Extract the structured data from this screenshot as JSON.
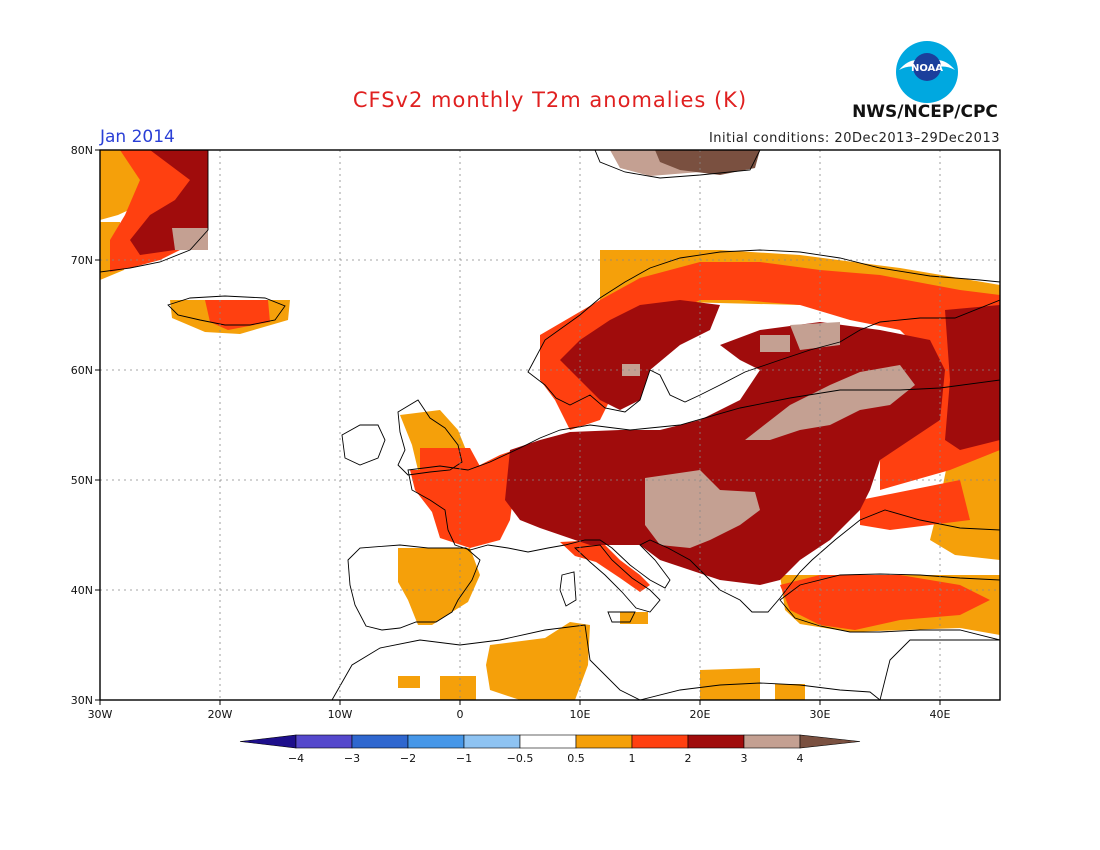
{
  "title": "CFSv2 monthly T2m anomalies (K)",
  "valid_month": "Jan 2014",
  "initial_conditions": "Initial conditions: 20Dec2013–29Dec2013",
  "agency": "NWS/NCEP/CPC",
  "logo": {
    "text": "NOAA",
    "colors": {
      "ring": "#00a8e0",
      "inner": "#1b3f9c",
      "gull": "#ffffff"
    }
  },
  "axes": {
    "lon_ticks": [
      "30W",
      "20W",
      "10W",
      "0",
      "10E",
      "20E",
      "30E",
      "40E"
    ],
    "lat_ticks": [
      "80N",
      "70N",
      "60N",
      "50N",
      "40N",
      "30N"
    ]
  },
  "colorbar": {
    "labels": [
      "−4",
      "−3",
      "−2",
      "−1",
      "−0.5",
      "0.5",
      "1",
      "2",
      "3",
      "4"
    ],
    "colors": [
      "#1e0f8c",
      "#5548cc",
      "#2f67cf",
      "#4697e8",
      "#8ec3f2",
      "#ffffff",
      "#f5a00a",
      "#ff4010",
      "#a00c0c",
      "#c4a092",
      "#7a5040"
    ]
  },
  "chart_data": {
    "type": "heatmap",
    "title": "CFSv2 monthly T2m anomalies (K)",
    "units": "K",
    "xlim": [
      -30,
      45
    ],
    "ylim": [
      30,
      80
    ],
    "xlabel": "",
    "ylabel": "",
    "levels": [
      -4,
      -3,
      -2,
      -1,
      -0.5,
      0.5,
      1,
      2,
      3,
      4
    ],
    "regions": [
      {
        "name": "Greenland east coast",
        "lon": [
          -30,
          -21
        ],
        "lat": [
          68,
          80
        ],
        "anomaly_range_K": "1 to 4"
      },
      {
        "name": "Svalbard",
        "lon": [
          11,
          27
        ],
        "lat": [
          78,
          80
        ],
        "anomaly_range_K": "3 to above 4"
      },
      {
        "name": "Iceland",
        "lon": [
          -24,
          -14
        ],
        "lat": [
          63,
          66
        ],
        "anomaly_range_K": "0.5 to 2"
      },
      {
        "name": "Scandinavia",
        "lon": [
          5,
          45
        ],
        "lat": [
          56,
          71
        ],
        "anomaly_range_K": "1 to 4"
      },
      {
        "name": "Central and Eastern Europe",
        "lon": [
          4,
          45
        ],
        "lat": [
          41,
          58
        ],
        "anomaly_range_K": "2 to 4"
      },
      {
        "name": "Western Europe",
        "lon": [
          -5,
          4
        ],
        "lat": [
          43,
          53
        ],
        "anomaly_range_K": "1 to 3"
      },
      {
        "name": "Iberia",
        "lon": [
          -5,
          2
        ],
        "lat": [
          36,
          42
        ],
        "anomaly_range_K": "0.5 to 2"
      },
      {
        "name": "Turkey",
        "lon": [
          27,
          45
        ],
        "lat": [
          36,
          40
        ],
        "anomaly_range_K": "1 to 2"
      },
      {
        "name": "North Africa",
        "lon": [
          -5,
          30
        ],
        "lat": [
          30,
          37
        ],
        "anomaly_range_K": "0.5 to 1"
      }
    ]
  }
}
